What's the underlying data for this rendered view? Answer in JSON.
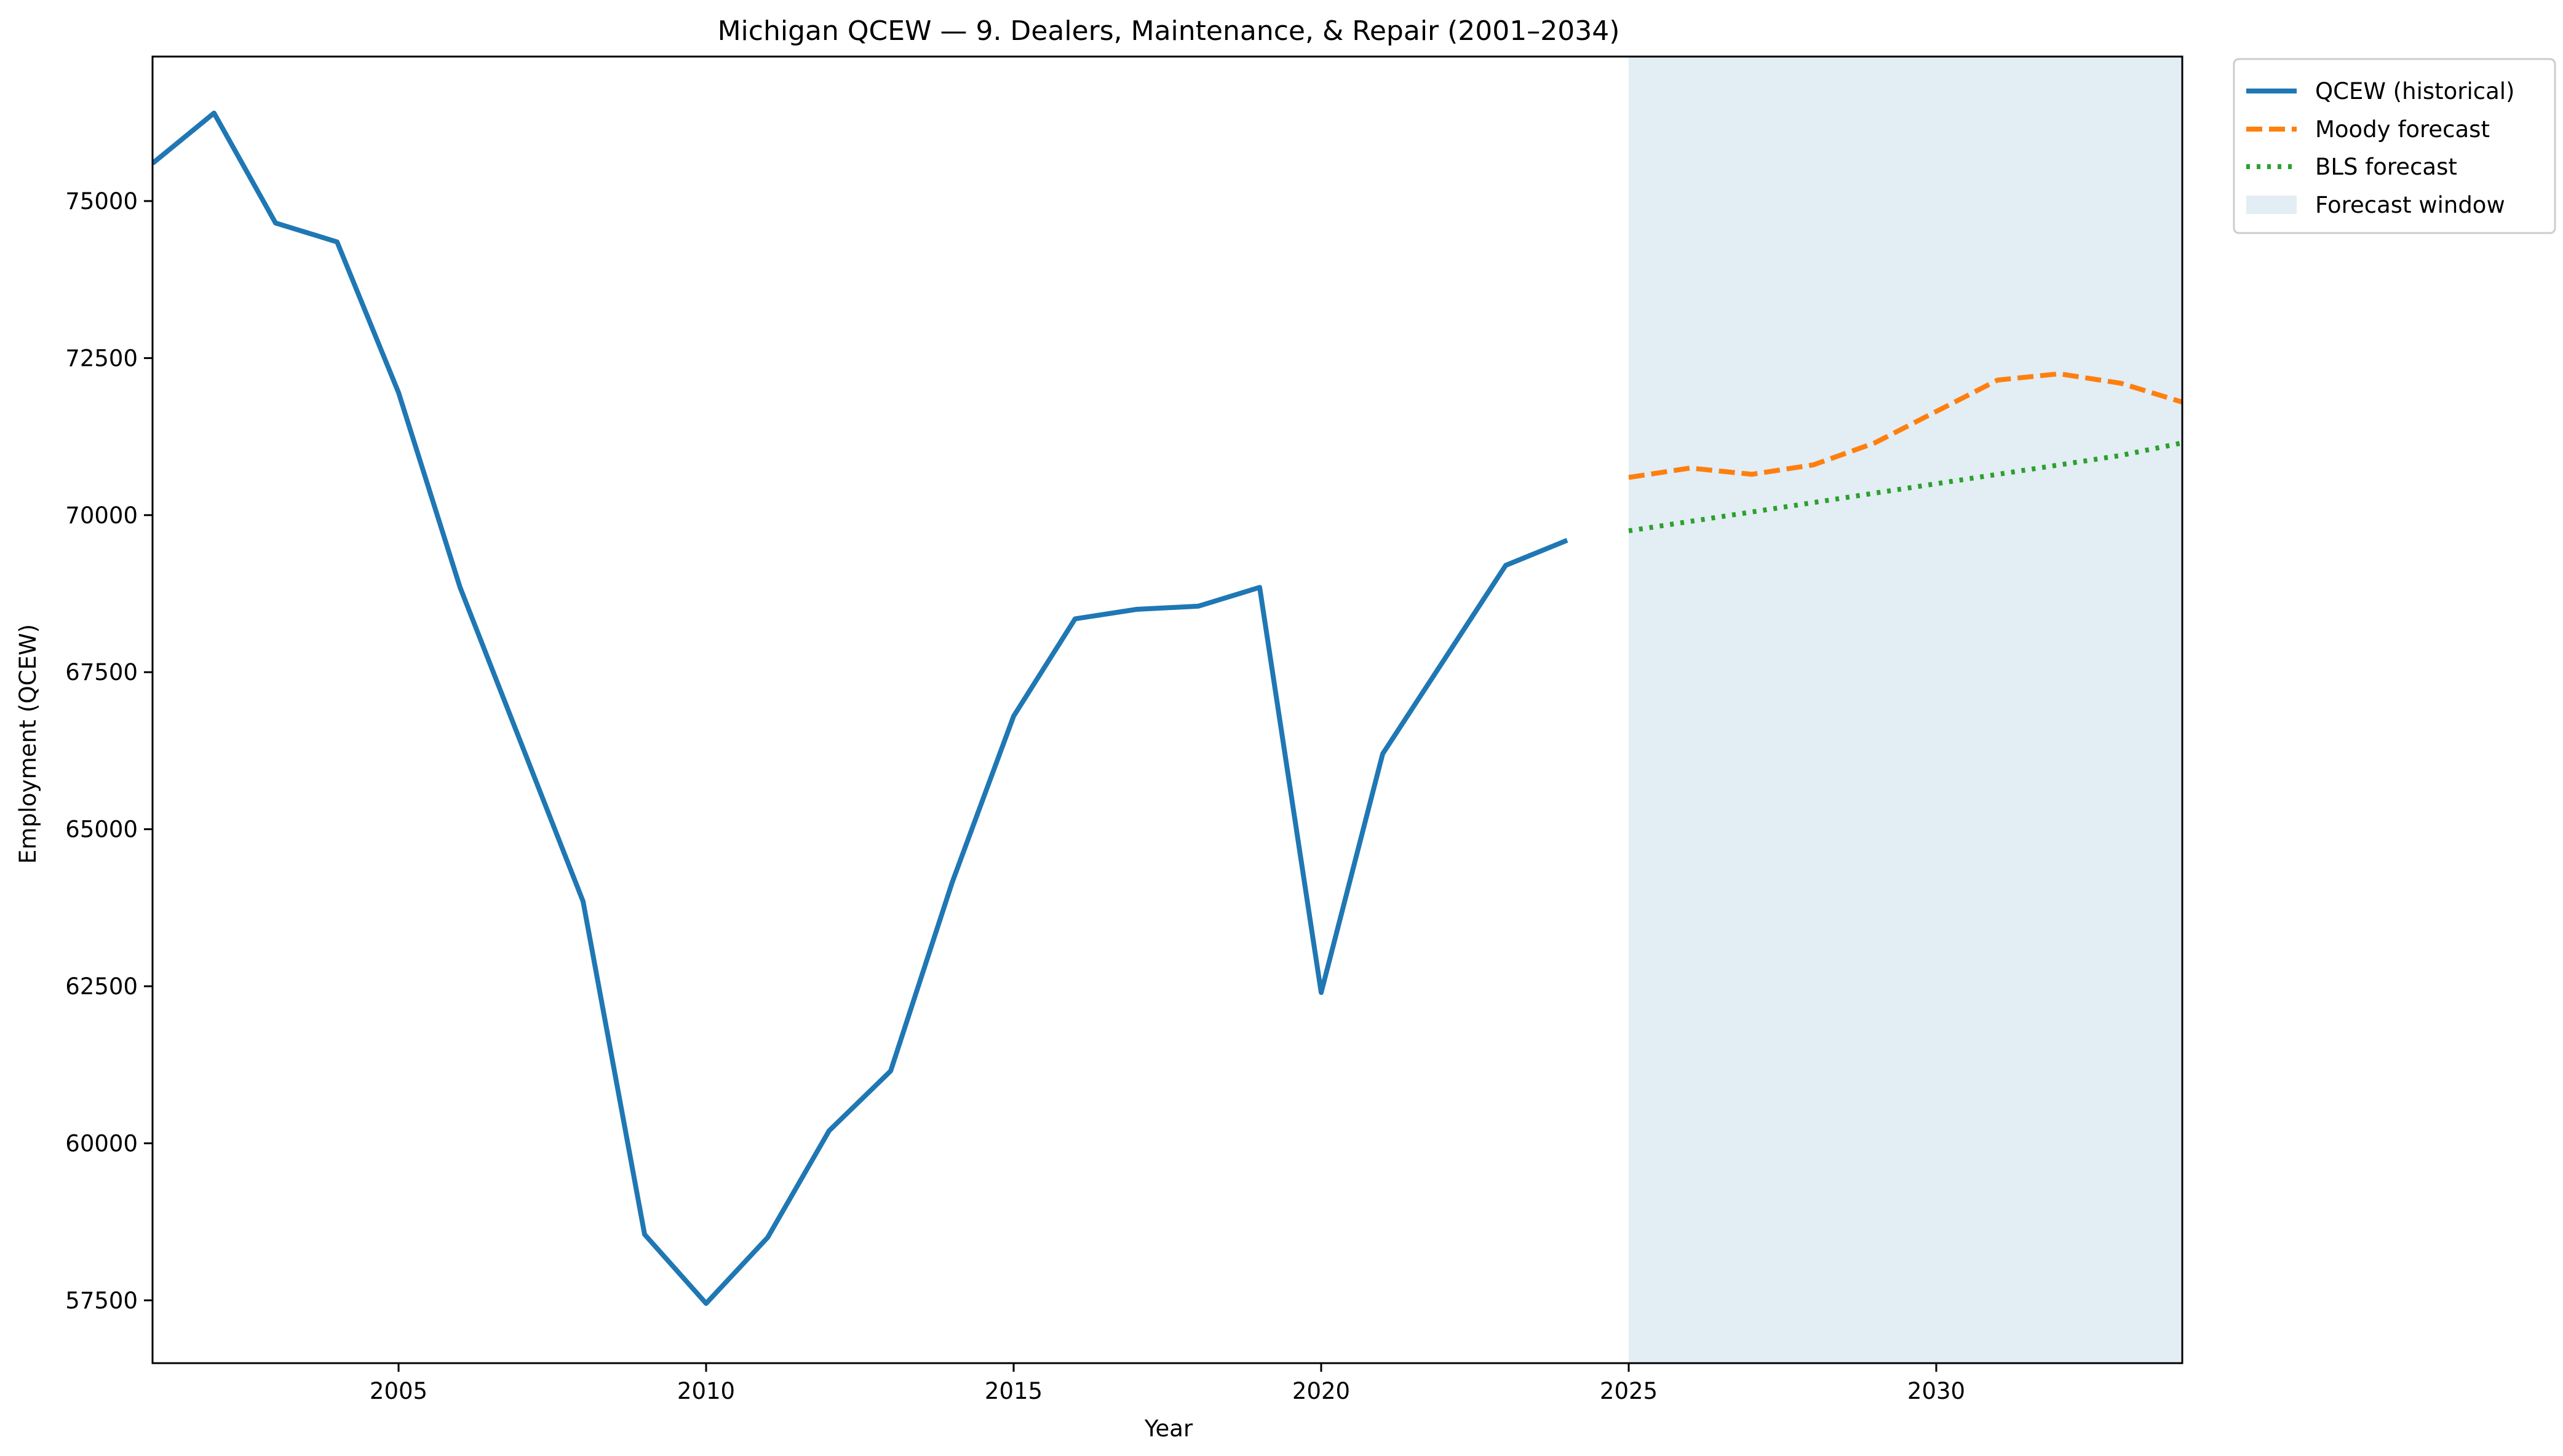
{
  "chart_data": {
    "type": "line",
    "title": "Michigan QCEW — 9. Dealers, Maintenance, & Repair (2001–2034)",
    "xlabel": "Year",
    "ylabel": "Employment (QCEW)",
    "xlim": [
      2001,
      2034
    ],
    "ylim": [
      56500,
      77300
    ],
    "x_ticks": [
      2005,
      2010,
      2015,
      2020,
      2025,
      2030
    ],
    "y_ticks": [
      57500,
      60000,
      62500,
      65000,
      67500,
      70000,
      72500,
      75000
    ],
    "grid": false,
    "legend_position": "outside-top-right",
    "forecast_window": {
      "label": "Forecast window",
      "start": 2025,
      "end": 2034,
      "color": "#e2edf4"
    },
    "series": [
      {
        "name": "QCEW (historical)",
        "style": "solid",
        "color": "#1f77b4",
        "x": [
          2001,
          2002,
          2003,
          2004,
          2005,
          2006,
          2007,
          2008,
          2009,
          2010,
          2011,
          2012,
          2013,
          2014,
          2015,
          2016,
          2017,
          2018,
          2019,
          2020,
          2021,
          2022,
          2023,
          2024
        ],
        "y": [
          75600,
          76400,
          74650,
          74350,
          71950,
          68850,
          66350,
          63850,
          58550,
          57450,
          58500,
          60200,
          61150,
          64150,
          66800,
          68350,
          68500,
          68550,
          68850,
          62400,
          66200,
          67700,
          69200,
          69600
        ]
      },
      {
        "name": "Moody forecast",
        "style": "dashed",
        "color": "#ff7f0e",
        "x": [
          2025,
          2026,
          2027,
          2028,
          2029,
          2030,
          2031,
          2032,
          2033,
          2034
        ],
        "y": [
          70600,
          70750,
          70650,
          70800,
          71150,
          71650,
          72150,
          72250,
          72100,
          71800
        ]
      },
      {
        "name": "BLS forecast",
        "style": "dotted",
        "color": "#2ca02c",
        "x": [
          2025,
          2026,
          2027,
          2028,
          2029,
          2030,
          2031,
          2032,
          2033,
          2034
        ],
        "y": [
          69750,
          69900,
          70050,
          70200,
          70350,
          70500,
          70650,
          70800,
          70950,
          71150
        ]
      }
    ]
  }
}
